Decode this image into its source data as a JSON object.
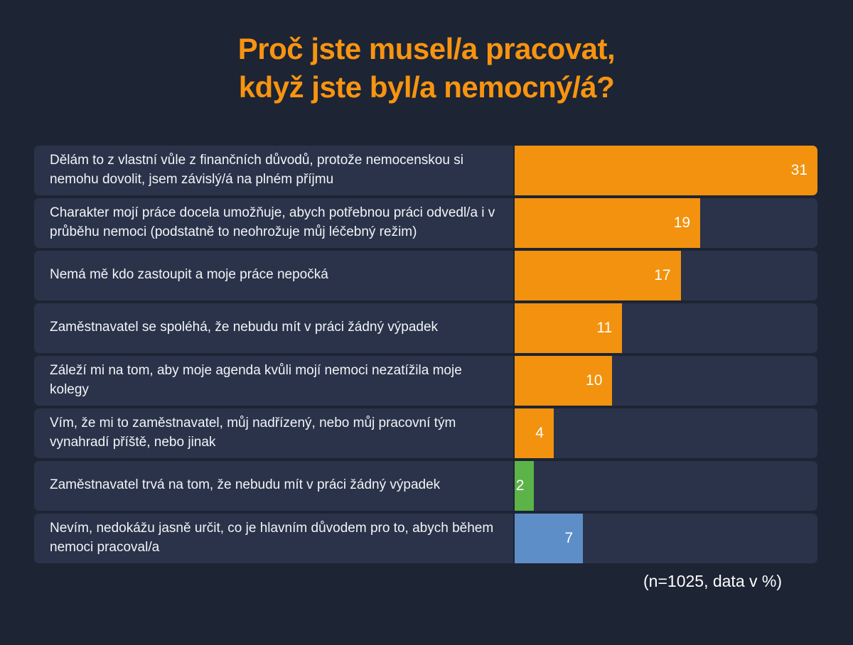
{
  "theme": {
    "bg": "#1d2434",
    "row_bg": "#2a3349",
    "title_color": "#f79410",
    "text_color": "#f2f4f8",
    "value_color": "#ffffff"
  },
  "chart_data": {
    "type": "bar",
    "orientation": "horizontal",
    "title": "Proč jste musel/a pracovat,\nkdyž jste byl/a nemocný/á?",
    "note": "(n=1025, data v %)",
    "xlim": [
      0,
      31
    ],
    "grid": false,
    "legend": false,
    "categories": [
      "Dělám to z vlastní vůle z finančních důvodů, protože nemocenskou si nemohu dovolit, jsem závislý/á na plném příjmu",
      "Charakter mojí práce docela umožňuje, abych potřebnou práci odvedl/a i v průběhu nemoci (podstatně to neohrožuje můj léčebný režim)",
      "Nemá mě kdo zastoupit a moje práce nepočká",
      "Zaměstnavatel se spoléhá, že nebudu mít v práci žádný výpadek",
      "Záleží mi na tom, aby moje agenda kvůli mojí nemoci nezatížila moje kolegy",
      "Vím, že mi to zaměstnavatel, můj nadřízený, nebo můj pracovní tým vynahradí příště, nebo jinak",
      "Zaměstnavatel trvá na tom, že nebudu mít v práci žádný výpadek",
      "Nevím, nedokážu jasně určit, co je hlavním důvodem pro to, abych během nemoci pracoval/a"
    ],
    "values": [
      31,
      19,
      17,
      11,
      10,
      4,
      2,
      7
    ],
    "colors": [
      "#f2920e",
      "#f2920e",
      "#f2920e",
      "#f2920e",
      "#f2920e",
      "#f2920e",
      "#5cb348",
      "#5d8ec7"
    ]
  }
}
